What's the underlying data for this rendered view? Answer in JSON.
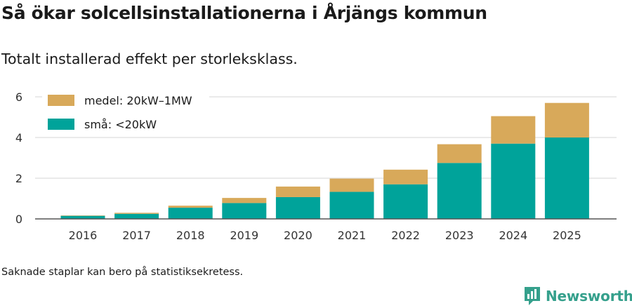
{
  "header": {
    "title": "Så ökar solcellsinstallationerna i Årjängs kommun",
    "subtitle": "Totalt installerad effekt per storleksklass."
  },
  "footnote": "Saknade staplar kan bero på statistiksekretess.",
  "brand": {
    "name": "Newsworthy",
    "icon": "newsworthy-logo-icon",
    "color": "#35a08c"
  },
  "chart_data": {
    "type": "bar",
    "stacked": true,
    "categories": [
      "2016",
      "2017",
      "2018",
      "2019",
      "2020",
      "2021",
      "2022",
      "2023",
      "2024",
      "2025"
    ],
    "series": [
      {
        "name": "små: <20kW",
        "color": "#00a39a",
        "values": [
          0.15,
          0.25,
          0.55,
          0.78,
          1.07,
          1.33,
          1.7,
          2.75,
          3.7,
          4.0
        ]
      },
      {
        "name": "medel: 20kW–1MW",
        "color": "#d8a95a",
        "values": [
          0.02,
          0.05,
          0.1,
          0.25,
          0.52,
          0.65,
          0.72,
          0.92,
          1.35,
          1.7
        ]
      }
    ],
    "legend_order": [
      "medel: 20kW–1MW",
      "små: <20kW"
    ],
    "legend_position": "top-left",
    "yticks": [
      0,
      2,
      4,
      6
    ],
    "ylim": [
      0,
      6.2
    ],
    "xlabel": "",
    "ylabel": "",
    "grid": true
  }
}
